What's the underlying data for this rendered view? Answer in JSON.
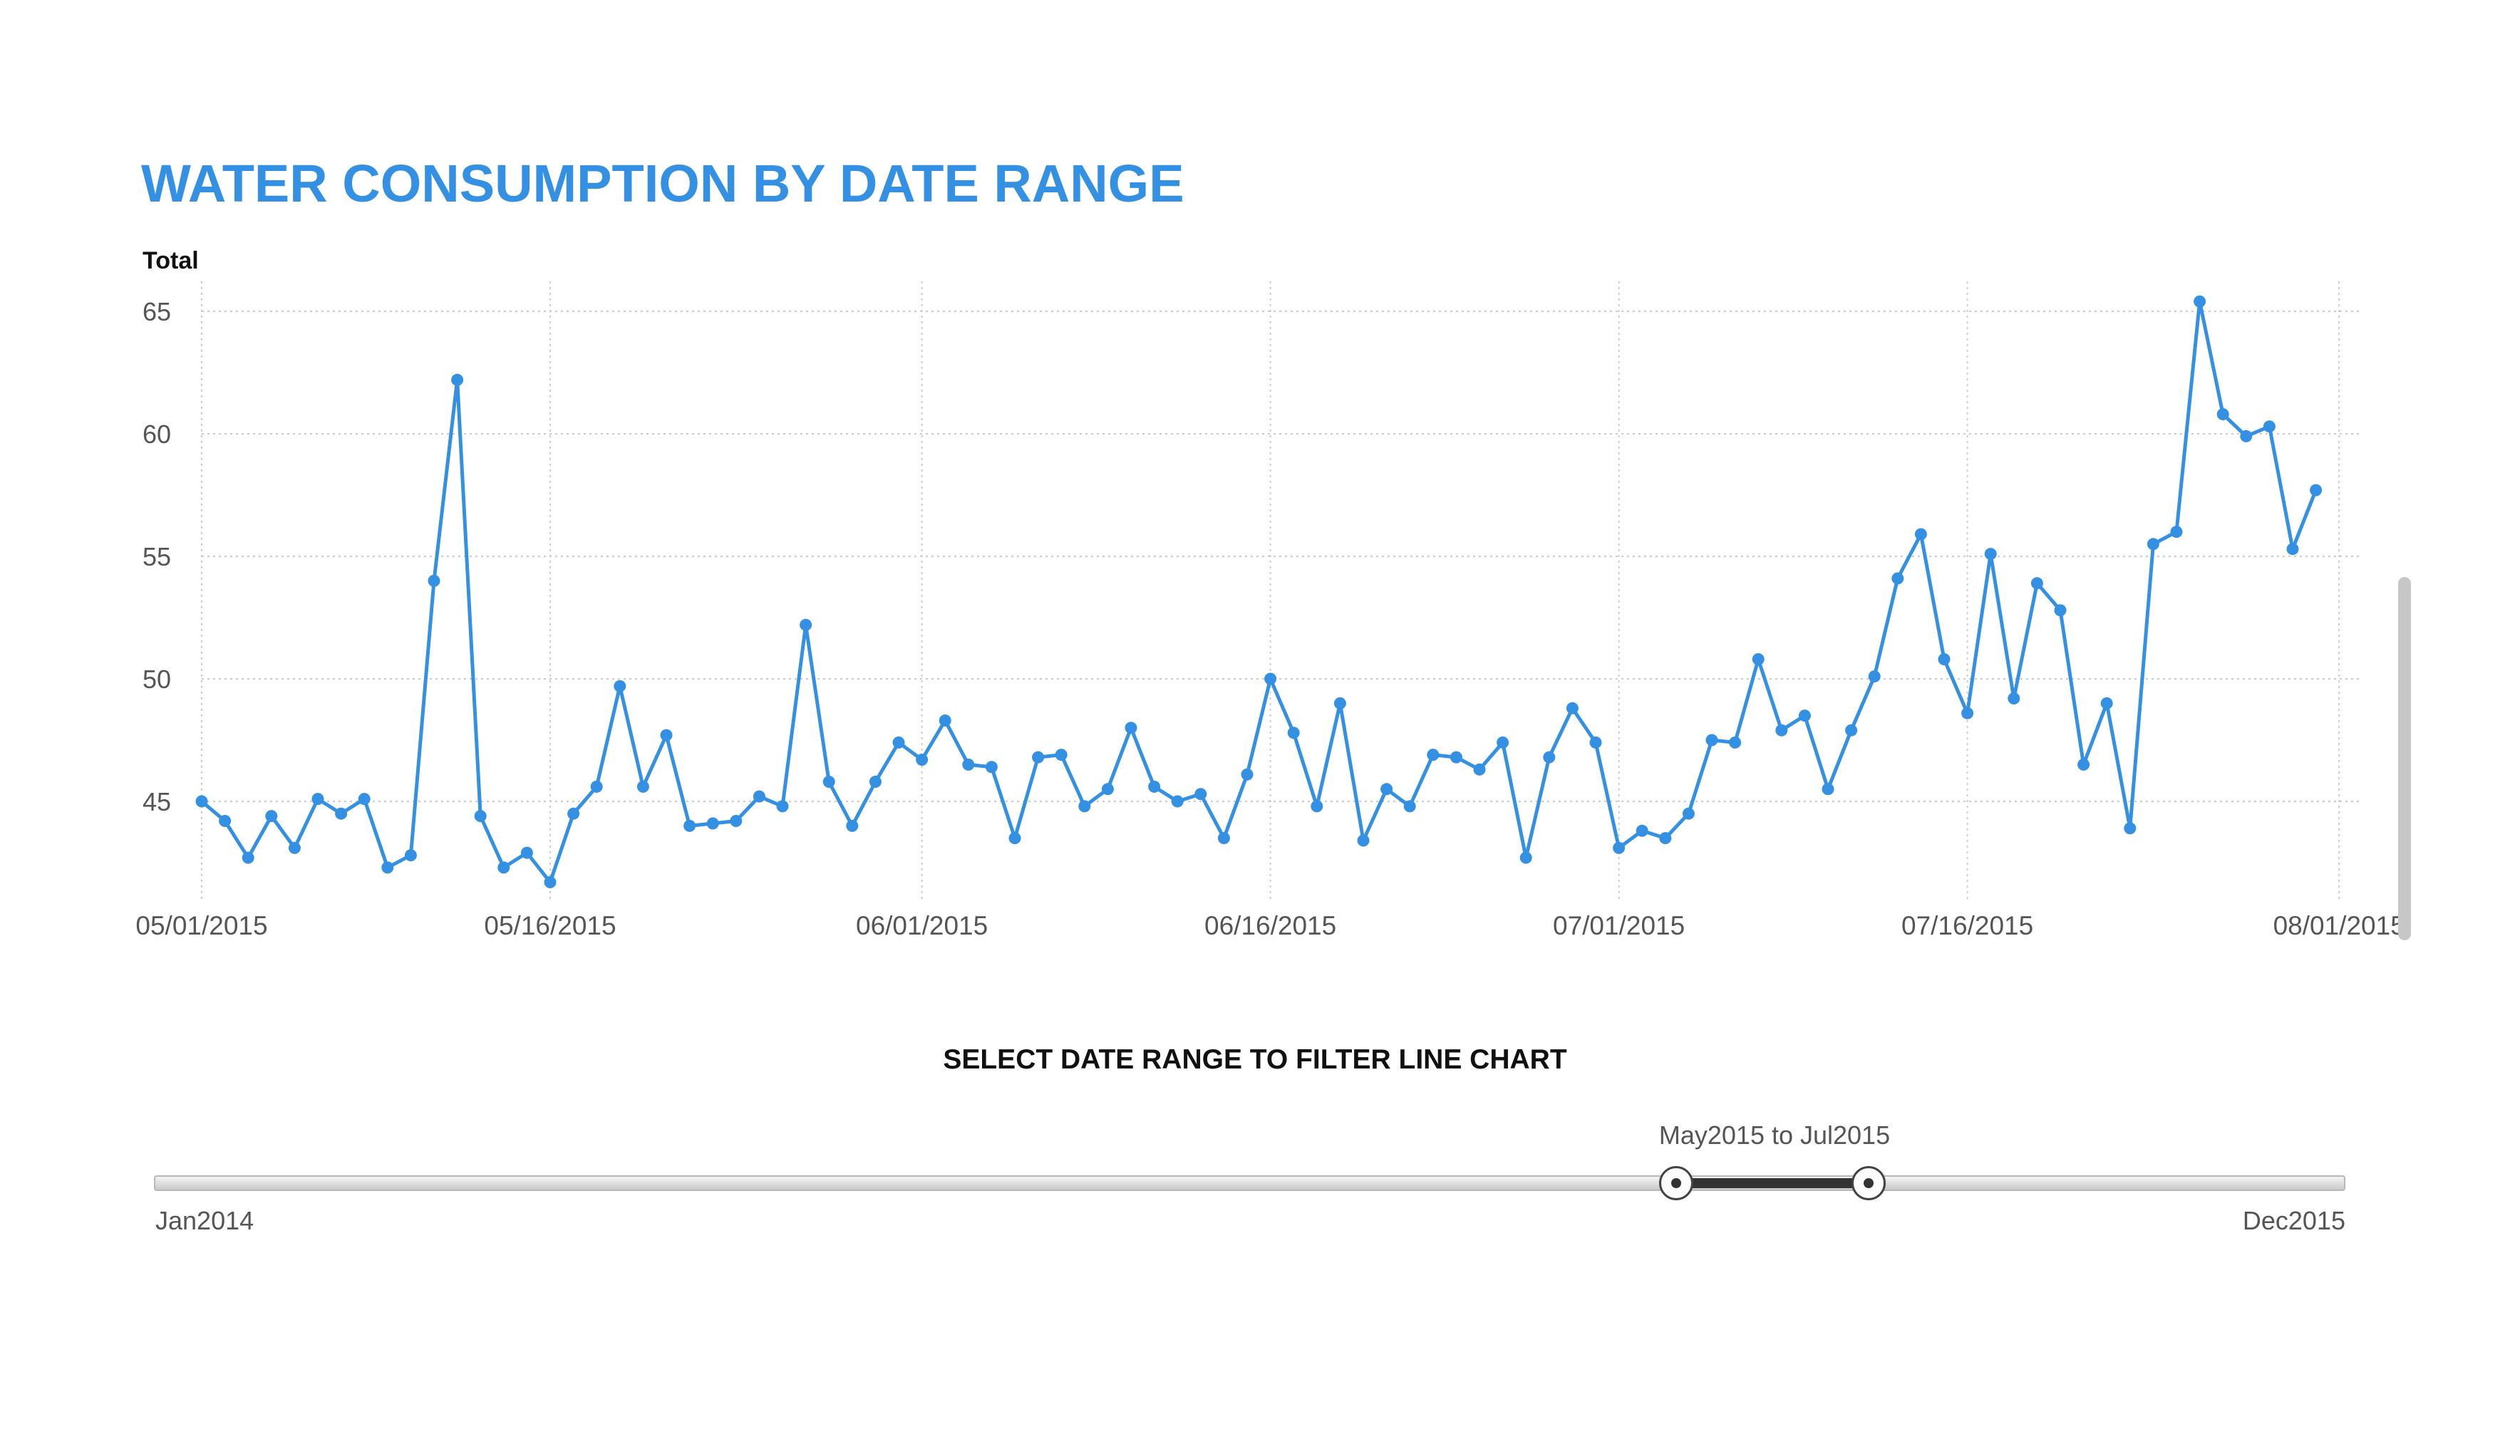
{
  "title": "WATER CONSUMPTION BY DATE RANGE",
  "colors": {
    "accent": "#3490e3",
    "grid": "#cccccc",
    "text": "#555555",
    "slider_fill": "#333333"
  },
  "chart_data": {
    "type": "line",
    "title": "WATER CONSUMPTION BY DATE RANGE",
    "ylabel": "Total",
    "xlabel": "",
    "x_start": "05/01/2015",
    "x_end": "07/31/2015",
    "ylim": [
      41,
      66
    ],
    "yticks": [
      45,
      50,
      55,
      60,
      65
    ],
    "xticks": [
      "05/01/2015",
      "05/16/2015",
      "06/01/2015",
      "06/16/2015",
      "07/01/2015",
      "07/16/2015",
      "08/01/2015"
    ],
    "grid": true,
    "legend": "none",
    "series": [
      {
        "values": [
          45.0,
          44.2,
          42.7,
          44.4,
          43.1,
          45.1,
          44.5,
          45.1,
          42.3,
          42.8,
          54.0,
          62.2,
          44.4,
          42.3,
          42.9,
          41.7,
          44.5,
          45.6,
          49.7,
          45.6,
          47.7,
          44.0,
          44.1,
          44.2,
          45.2,
          44.8,
          52.2,
          45.8,
          44.0,
          45.8,
          47.4,
          46.7,
          48.3,
          46.5,
          46.4,
          43.5,
          46.8,
          46.9,
          44.8,
          45.5,
          48.0,
          45.6,
          45.0,
          45.3,
          43.5,
          46.1,
          50.0,
          47.8,
          44.8,
          49.0,
          43.4,
          45.5,
          44.8,
          46.9,
          46.8,
          46.3,
          47.4,
          42.7,
          46.8,
          48.8,
          47.4,
          43.1,
          43.8,
          43.5,
          44.5,
          47.5,
          47.4,
          50.8,
          47.9,
          48.5,
          45.5,
          47.9,
          50.1,
          54.1,
          55.9,
          50.8,
          48.6,
          55.1,
          49.2,
          53.9,
          52.8,
          46.5,
          49.0,
          43.9,
          55.5,
          56.0,
          65.4,
          60.8,
          59.9,
          60.3,
          55.3,
          57.7
        ]
      }
    ]
  },
  "slider": {
    "heading": "SELECT DATE RANGE TO FILTER LINE CHART",
    "range_label": "May2015 to Jul2015",
    "min_label": "Jan2014",
    "max_label": "Dec2015",
    "months_total": 24,
    "selected_start_month": 16,
    "selected_end_month": 18
  }
}
